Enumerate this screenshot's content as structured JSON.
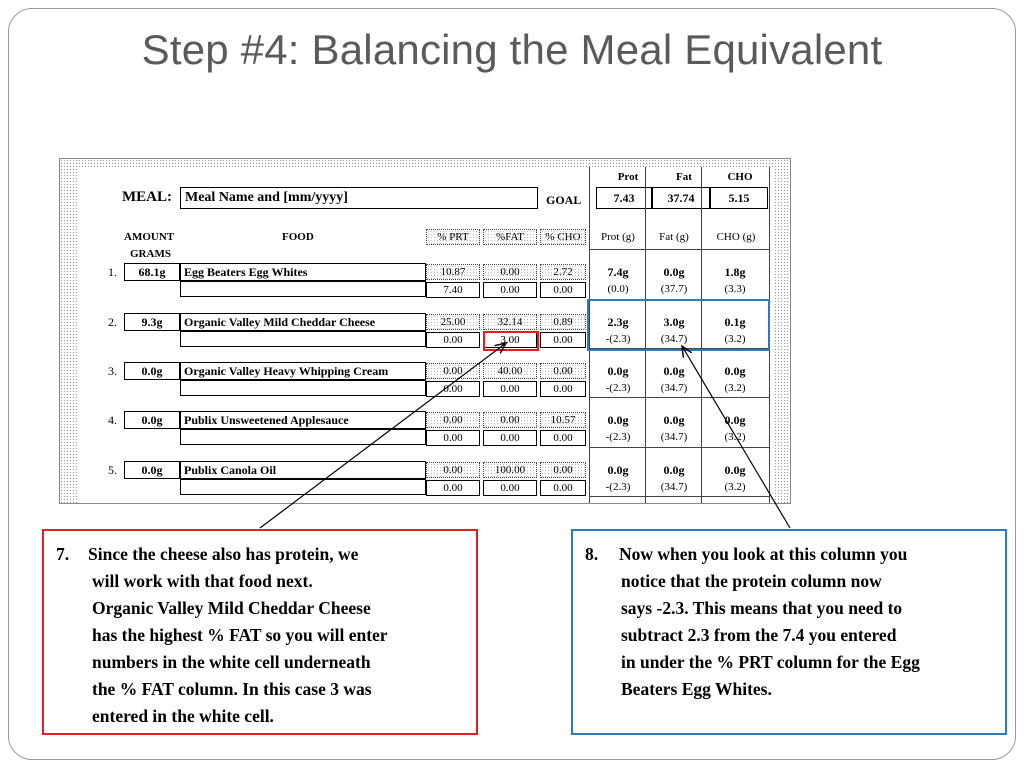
{
  "slide": {
    "title": "Step #4: Balancing the Meal Equivalent"
  },
  "meal": {
    "label": "MEAL:",
    "name": "Meal Name and [mm/yyyy]",
    "goal_label": "GOAL",
    "goal_headers": [
      "Prot",
      "Fat",
      "CHO"
    ],
    "goal_values": [
      "7.43",
      "37.74",
      "5.15"
    ]
  },
  "columns": {
    "amount": "AMOUNT",
    "grams": "GRAMS",
    "food": "FOOD",
    "pct_prt": "% PRT",
    "pct_fat": "%FAT",
    "pct_cho": "% CHO",
    "prot_g": "Prot (g)",
    "fat_g": "Fat (g)",
    "cho_g": "CHO (g)"
  },
  "rows": [
    {
      "num": "1.",
      "grams": "68.1g",
      "food": "Egg Beaters Egg Whites",
      "pct": [
        "10.87",
        "0.00",
        "2.72"
      ],
      "input": [
        "7.40",
        "0.00",
        "0.00"
      ],
      "prot": "7.4g",
      "fat": "0.0g",
      "cho": "1.8g",
      "rprot": "(0.0)",
      "rfat": "(37.7)",
      "rcho": "(3.3)"
    },
    {
      "num": "2.",
      "grams": "9.3g",
      "food": "Organic Valley Mild Cheddar Cheese",
      "pct": [
        "25.00",
        "32.14",
        "0.89"
      ],
      "input": [
        "0.00",
        "3.00",
        "0.00"
      ],
      "prot": "2.3g",
      "fat": "3.0g",
      "cho": "0.1g",
      "rprot": "-(2.3)",
      "rfat": "(34.7)",
      "rcho": "(3.2)"
    },
    {
      "num": "3.",
      "grams": "0.0g",
      "food": "Organic Valley Heavy Whipping Cream",
      "pct": [
        "0.00",
        "40.00",
        "0.00"
      ],
      "input": [
        "0.00",
        "0.00",
        "0.00"
      ],
      "prot": "0.0g",
      "fat": "0.0g",
      "cho": "0.0g",
      "rprot": "-(2.3)",
      "rfat": "(34.7)",
      "rcho": "(3.2)"
    },
    {
      "num": "4.",
      "grams": "0.0g",
      "food": "Publix Unsweetened Applesauce",
      "pct": [
        "0.00",
        "0.00",
        "10.57"
      ],
      "input": [
        "0.00",
        "0.00",
        "0.00"
      ],
      "prot": "0.0g",
      "fat": "0.0g",
      "cho": "0.0g",
      "rprot": "-(2.3)",
      "rfat": "(34.7)",
      "rcho": "(3.2)"
    },
    {
      "num": "5.",
      "grams": "0.0g",
      "food": "Publix Canola Oil",
      "pct": [
        "0.00",
        "100.00",
        "0.00"
      ],
      "input": [
        "0.00",
        "0.00",
        "0.00"
      ],
      "prot": "0.0g",
      "fat": "0.0g",
      "cho": "0.0g",
      "rprot": "-(2.3)",
      "rfat": "(34.7)",
      "rcho": "(3.2)"
    }
  ],
  "callouts": {
    "left": {
      "num": "7.",
      "lines": [
        "Since the cheese also has protein, we",
        "will work with that food next.",
        "Organic Valley Mild Cheddar Cheese",
        "has the highest % FAT so you will enter",
        "numbers in the white cell underneath",
        "the % FAT column.  In this case 3 was",
        "entered in the white cell."
      ],
      "border_color": "#e02020"
    },
    "right": {
      "num": "8.",
      "lines": [
        "Now when you look at this column you",
        "notice that the protein column now",
        "says -2.3. This means that you need to",
        "subtract 2.3 from the 7.4 you entered",
        "in under the % PRT column for the Egg",
        "Beaters Egg Whites."
      ],
      "border_color": "#2a7bbf"
    }
  },
  "colors": {
    "highlight_red": "#e02020",
    "highlight_blue": "#2a7bbf",
    "title": "#5a5a5a"
  }
}
